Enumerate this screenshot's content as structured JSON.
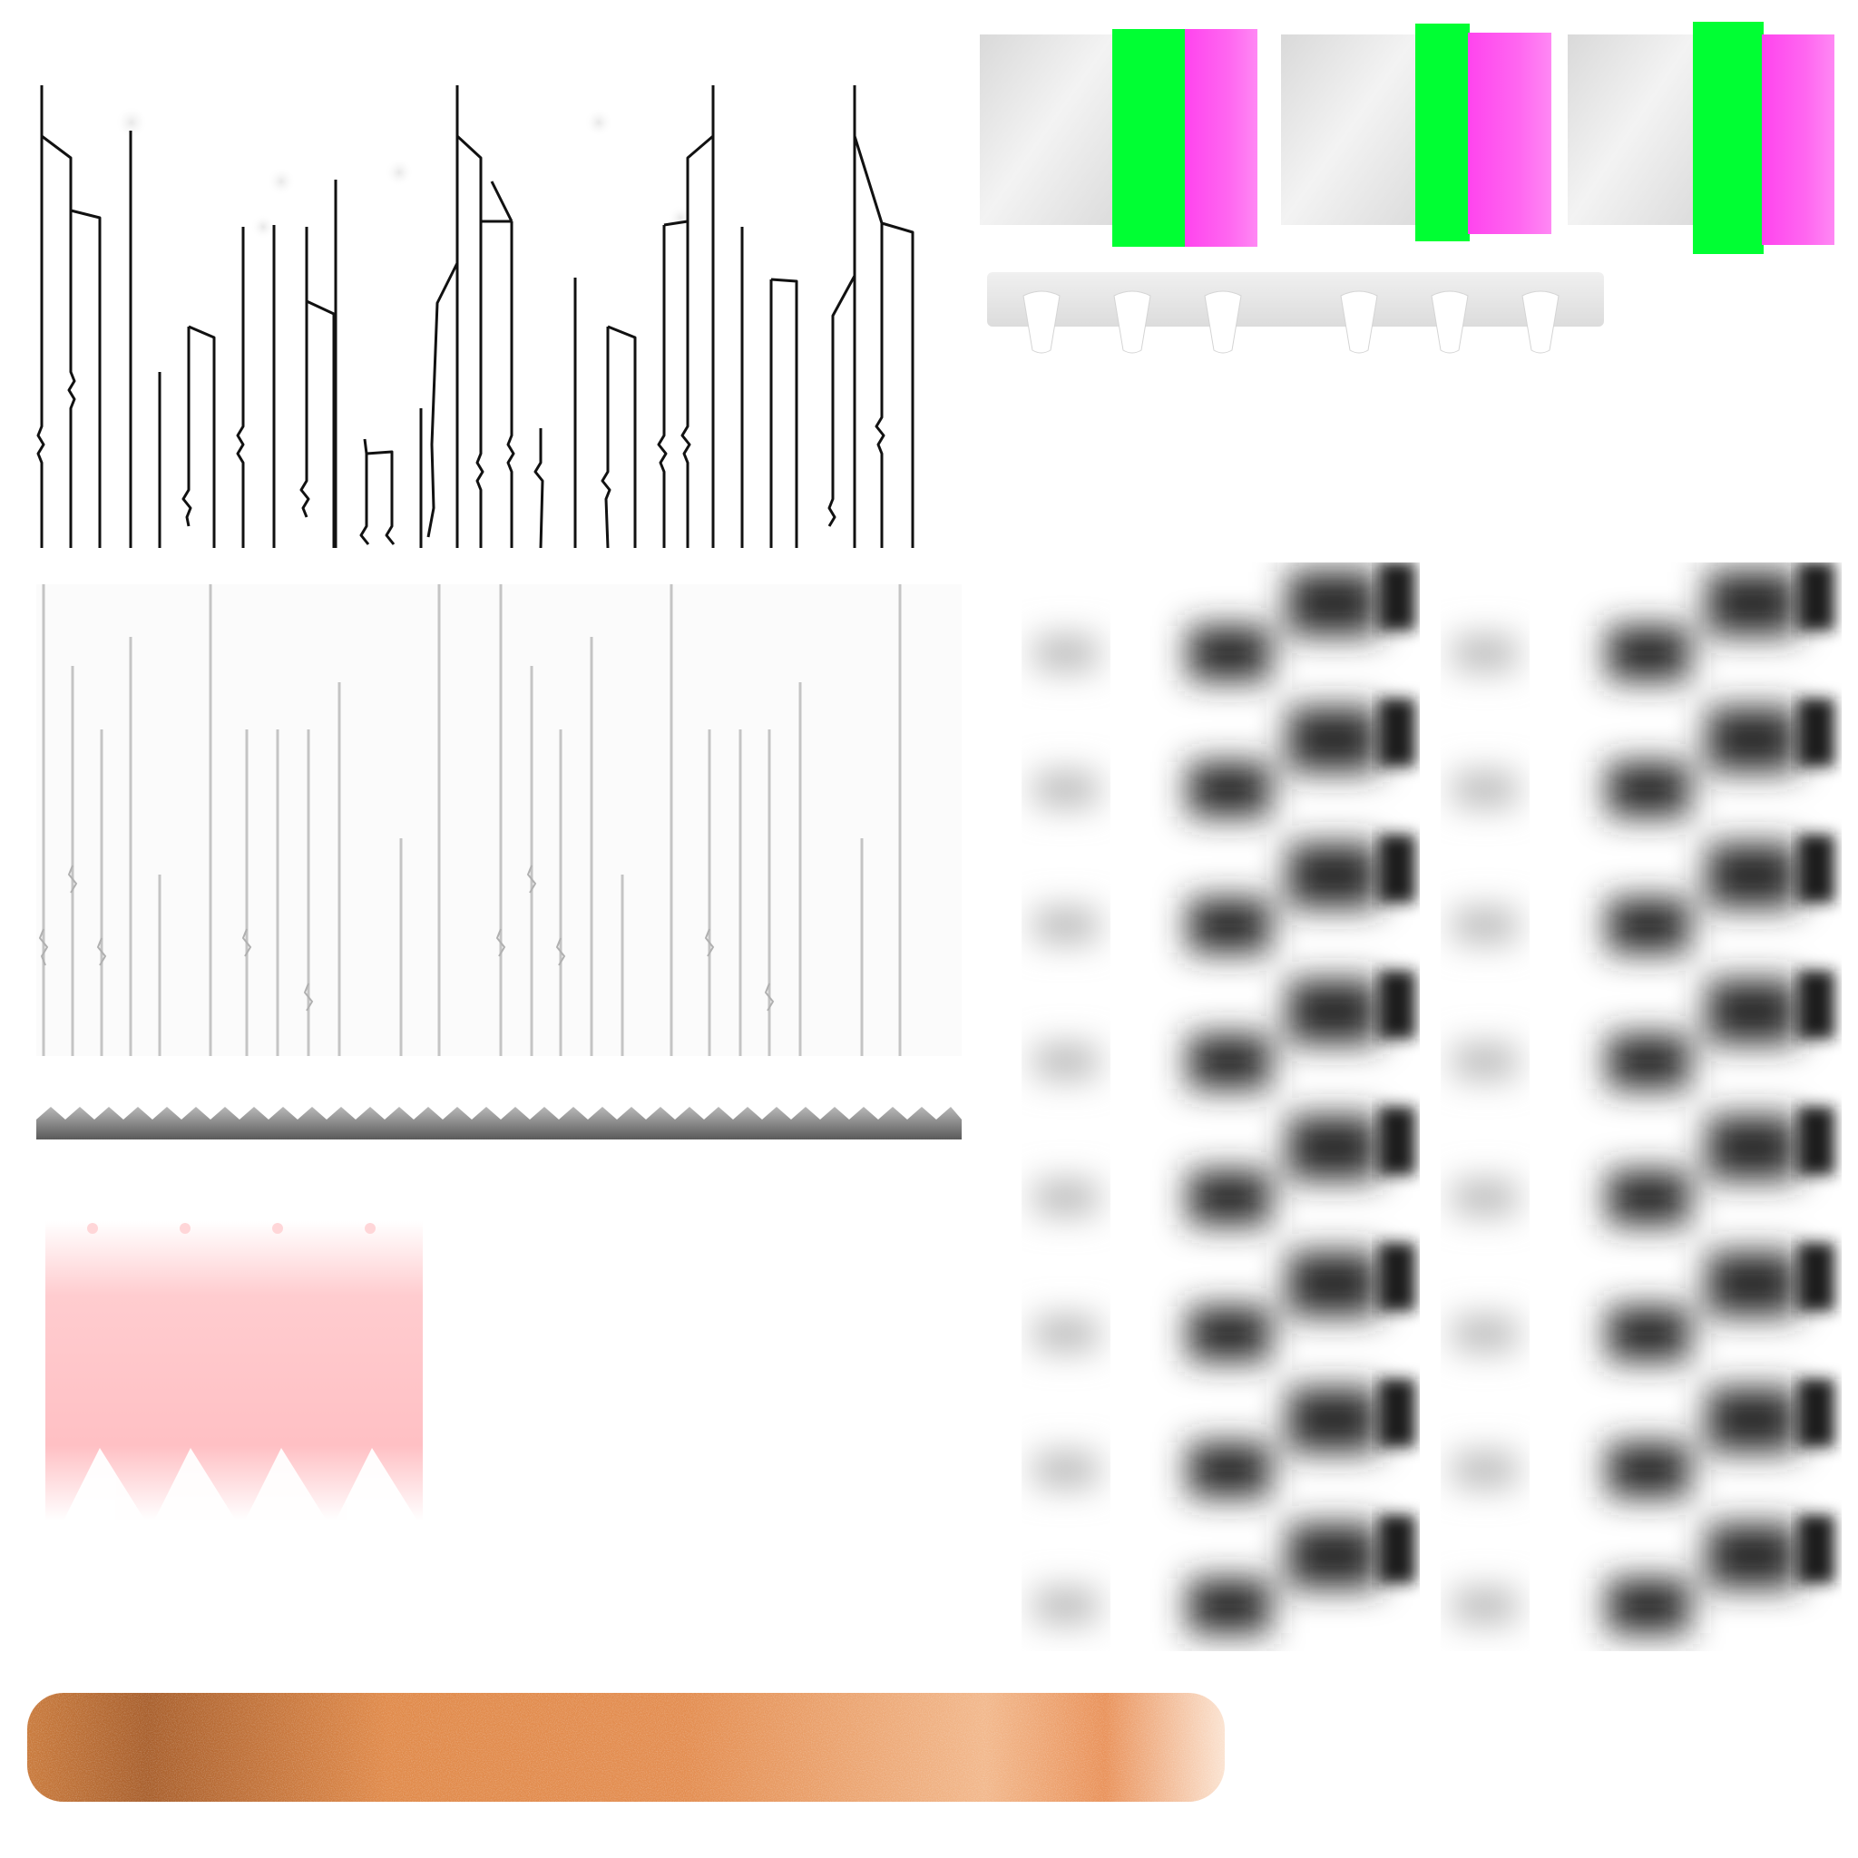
{
  "colors": {
    "stroke_dark": "#111111",
    "stroke_light": "#c9c9c9",
    "green": "#00ff33",
    "magenta": "#ff44ee",
    "pink": "#ffc4c8",
    "orange": "#e8874a",
    "dark_blur": "#1a1a1a",
    "mid_gray": "#9a9a9a"
  },
  "icons": {
    "wire_atlas": "vertical-wire-strands-icon",
    "thin_wire_atlas": "thin-wire-strands-icon",
    "zigzag_strip": "zigzag-strip-icon",
    "swatches": "color-swatch-icon",
    "bumps": "bump-strip-icon",
    "pink_gradient": "pink-gradient-icon",
    "blur_grid": "blurred-checker-grid-icon",
    "orange_bar": "orange-noise-bar-icon"
  }
}
